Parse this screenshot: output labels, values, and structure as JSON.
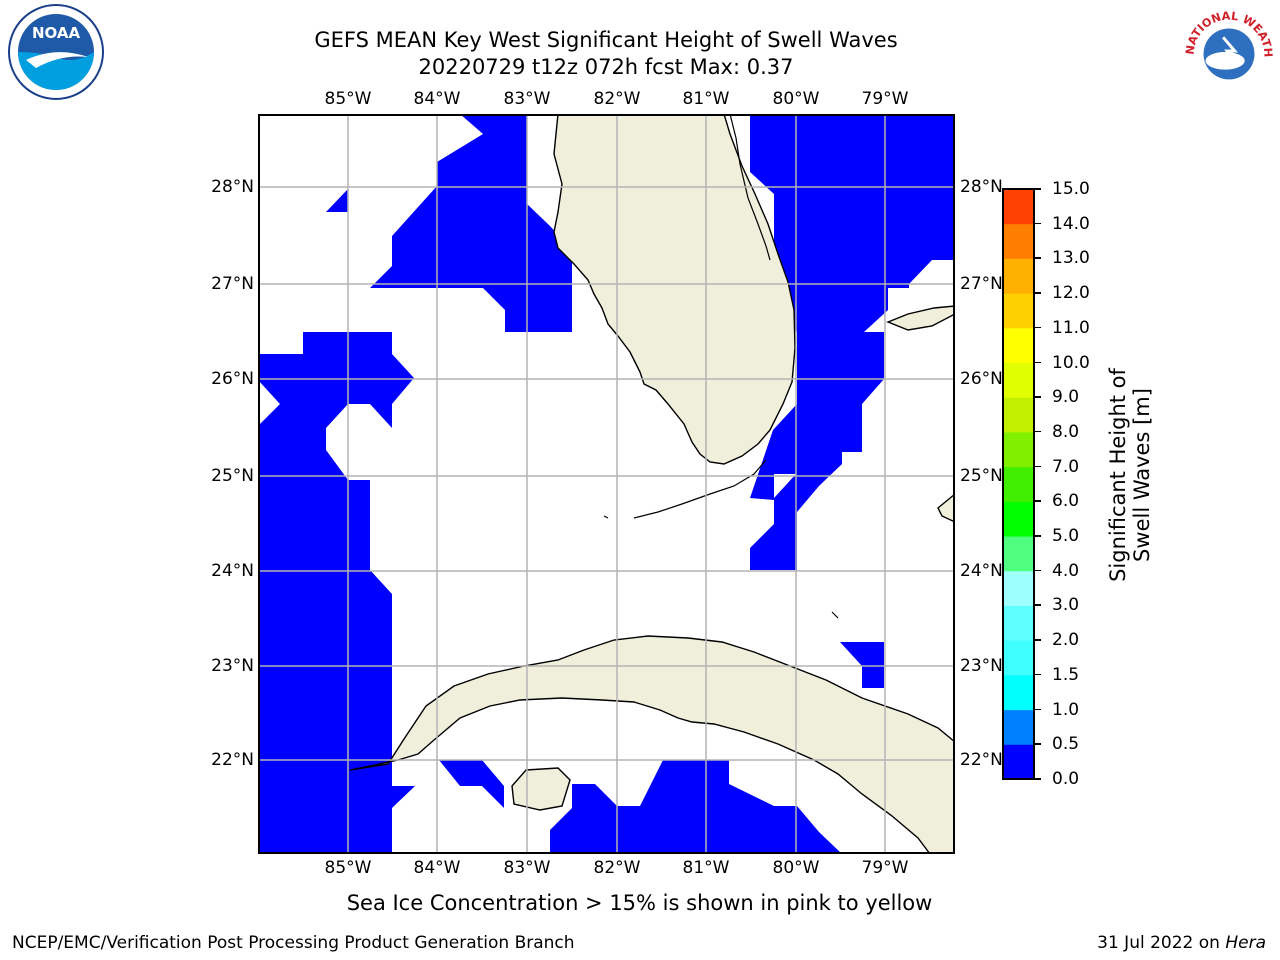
{
  "title_line1": "GEFS MEAN Key West Significant Height of Swell Waves",
  "title_line2": "20220729 t12z 072h fcst   Max: 0.37",
  "lon_labels": [
    "85°W",
    "84°W",
    "83°W",
    "82°W",
    "81°W",
    "80°W",
    "79°W"
  ],
  "lat_labels": [
    "28°N",
    "27°N",
    "26°N",
    "25°N",
    "24°N",
    "23°N",
    "22°N"
  ],
  "colorbar": {
    "label": "Significant Height of Swell Waves [m]",
    "ticks": [
      "0.0",
      "0.5",
      "1.0",
      "1.5",
      "2.0",
      "3.0",
      "4.0",
      "5.0",
      "6.0",
      "7.0",
      "8.0",
      "9.0",
      "10.0",
      "11.0",
      "12.0",
      "13.0",
      "14.0",
      "15.0"
    ],
    "colors": [
      "#0000ff",
      "#0080ff",
      "#00ffff",
      "#40ffff",
      "#60ffff",
      "#a0ffff",
      "#50ff80",
      "#00ff00",
      "#40f000",
      "#80f000",
      "#c0f000",
      "#e0ff00",
      "#ffff00",
      "#ffd000",
      "#ffb000",
      "#ff8000",
      "#ff4000",
      "#ff0000"
    ]
  },
  "map_colors": {
    "land": "#efefdc",
    "swell": "#0000ff",
    "ocean": "#ffffff",
    "grid": "#b4b4b4"
  },
  "note": "Sea Ice Concentration > 15% is shown in pink to yellow",
  "footer_left": "NCEP/EMC/Verification Post Processing Product Generation Branch",
  "footer_right_date": "31 Jul 2022 on",
  "footer_right_host": "Hera",
  "logo_left_text": "NOAA",
  "logo_right_text": "NATIONAL WEATHER SERVICE"
}
